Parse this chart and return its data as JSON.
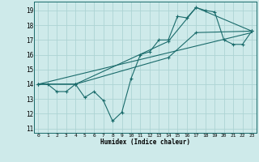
{
  "xlabel": "Humidex (Indice chaleur)",
  "ylabel": "",
  "bg_color": "#ceeaea",
  "grid_color": "#add4d4",
  "line_color": "#1a6b6b",
  "xlim": [
    -0.5,
    23.5
  ],
  "ylim": [
    10.7,
    19.6
  ],
  "xticks": [
    0,
    1,
    2,
    3,
    4,
    5,
    6,
    7,
    8,
    9,
    10,
    11,
    12,
    13,
    14,
    15,
    16,
    17,
    18,
    19,
    20,
    21,
    22,
    23
  ],
  "yticks": [
    11,
    12,
    13,
    14,
    15,
    16,
    17,
    18,
    19
  ],
  "series1_x": [
    0,
    1,
    2,
    3,
    4,
    5,
    6,
    7,
    8,
    9,
    10,
    11,
    12,
    13,
    14,
    15,
    16,
    17,
    18,
    19,
    20,
    21,
    22,
    23
  ],
  "series1_y": [
    14.0,
    14.0,
    13.5,
    13.5,
    14.0,
    13.1,
    13.5,
    12.9,
    11.5,
    12.1,
    14.4,
    16.0,
    16.2,
    17.0,
    17.0,
    18.6,
    18.5,
    19.2,
    19.0,
    18.9,
    17.0,
    16.7,
    16.7,
    17.6
  ],
  "series2_x": [
    0,
    4,
    14,
    17,
    23
  ],
  "series2_y": [
    14.0,
    14.0,
    16.9,
    19.2,
    17.6
  ],
  "series3_x": [
    0,
    4,
    14,
    17,
    23
  ],
  "series3_y": [
    14.0,
    14.0,
    15.8,
    17.5,
    17.6
  ],
  "series4_x": [
    0,
    23
  ],
  "series4_y": [
    14.0,
    17.5
  ]
}
